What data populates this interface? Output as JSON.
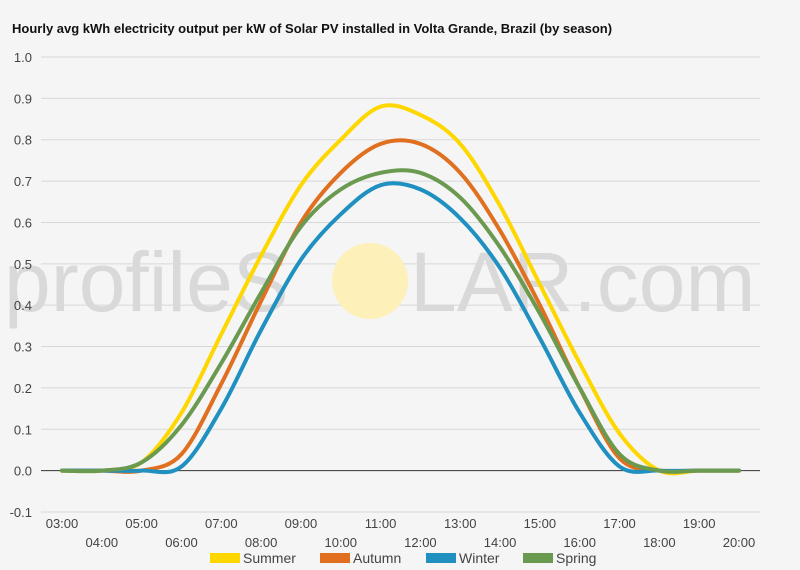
{
  "chart_data": {
    "type": "line",
    "title": "Hourly avg kWh electricity output per kW of Solar PV installed in Volta Grande, Brazil (by season)",
    "xlabel": "",
    "ylabel": "",
    "x": [
      "03:00",
      "04:00",
      "05:00",
      "06:00",
      "07:00",
      "08:00",
      "09:00",
      "10:00",
      "11:00",
      "12:00",
      "13:00",
      "14:00",
      "15:00",
      "16:00",
      "17:00",
      "18:00",
      "19:00",
      "20:00"
    ],
    "y_ticks": [
      "-0.1",
      "0.0",
      "0.1",
      "0.2",
      "0.3",
      "0.4",
      "0.5",
      "0.6",
      "0.7",
      "0.8",
      "0.9",
      "1.0"
    ],
    "ylim": [
      -0.1,
      1.0
    ],
    "grid": true,
    "legend_position": "bottom",
    "series": [
      {
        "name": "Summer",
        "color": "#ffd700",
        "values": [
          0.0,
          0.0,
          0.02,
          0.14,
          0.33,
          0.52,
          0.69,
          0.8,
          0.88,
          0.86,
          0.79,
          0.64,
          0.45,
          0.26,
          0.09,
          0.0,
          0.0,
          0.0
        ]
      },
      {
        "name": "Autumn",
        "color": "#e07020",
        "values": [
          0.0,
          0.0,
          0.0,
          0.04,
          0.21,
          0.41,
          0.6,
          0.72,
          0.79,
          0.79,
          0.72,
          0.58,
          0.4,
          0.2,
          0.03,
          0.0,
          0.0,
          0.0
        ]
      },
      {
        "name": "Winter",
        "color": "#2090c0",
        "values": [
          0.0,
          0.0,
          0.0,
          0.01,
          0.15,
          0.34,
          0.51,
          0.62,
          0.69,
          0.68,
          0.61,
          0.49,
          0.32,
          0.14,
          0.01,
          0.0,
          0.0,
          0.0
        ]
      },
      {
        "name": "Spring",
        "color": "#6a9950",
        "values": [
          0.0,
          0.0,
          0.02,
          0.11,
          0.26,
          0.43,
          0.59,
          0.68,
          0.72,
          0.72,
          0.66,
          0.54,
          0.38,
          0.2,
          0.04,
          0.0,
          0.0,
          0.0
        ]
      }
    ]
  },
  "watermark": {
    "left": "profileS",
    "right": "LAR.com",
    "sun_color": "#fdf0b8"
  }
}
